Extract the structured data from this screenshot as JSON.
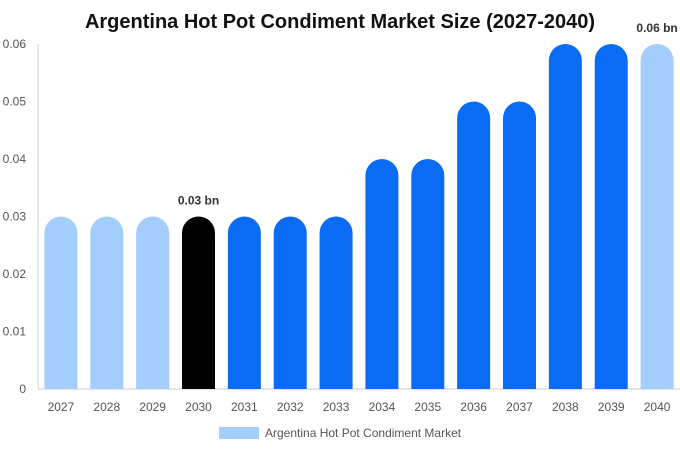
{
  "chart_data": {
    "type": "bar",
    "title": "Argentina Hot Pot Condiment Market Size (2027-2040)",
    "categories": [
      "2027",
      "2028",
      "2029",
      "2030",
      "2031",
      "2032",
      "2033",
      "2034",
      "2035",
      "2036",
      "2037",
      "2038",
      "2039",
      "2040"
    ],
    "series": [
      {
        "name": "Argentina Hot Pot Condiment Market",
        "values": [
          0.03,
          0.03,
          0.03,
          0.03,
          0.03,
          0.03,
          0.03,
          0.04,
          0.04,
          0.05,
          0.05,
          0.06,
          0.06,
          0.06
        ]
      }
    ],
    "bar_colors": [
      "#a3cdfd",
      "#a3cdfd",
      "#a3cdfd",
      "#000000",
      "#0a6cf5",
      "#0a6cf5",
      "#0a6cf5",
      "#0a6cf5",
      "#0a6cf5",
      "#0a6cf5",
      "#0a6cf5",
      "#0a6cf5",
      "#0a6cf5",
      "#a3cdfd"
    ],
    "y_ticks": [
      0,
      0.01,
      0.02,
      0.03,
      0.04,
      0.05,
      0.06
    ],
    "y_tick_labels": [
      "0",
      "0.01",
      "0.02",
      "0.03",
      "0.04",
      "0.05",
      "0.06"
    ],
    "ylim": [
      0,
      0.06
    ],
    "data_labels": [
      {
        "index": 3,
        "text": "0.03 bn"
      },
      {
        "index": 13,
        "text": "0.06 bn"
      }
    ],
    "legend": {
      "label": "Argentina Hot Pot Condiment Market",
      "color": "#a3cdfd",
      "position": "bottom"
    },
    "xlabel": "",
    "ylabel": "",
    "grid": false
  }
}
